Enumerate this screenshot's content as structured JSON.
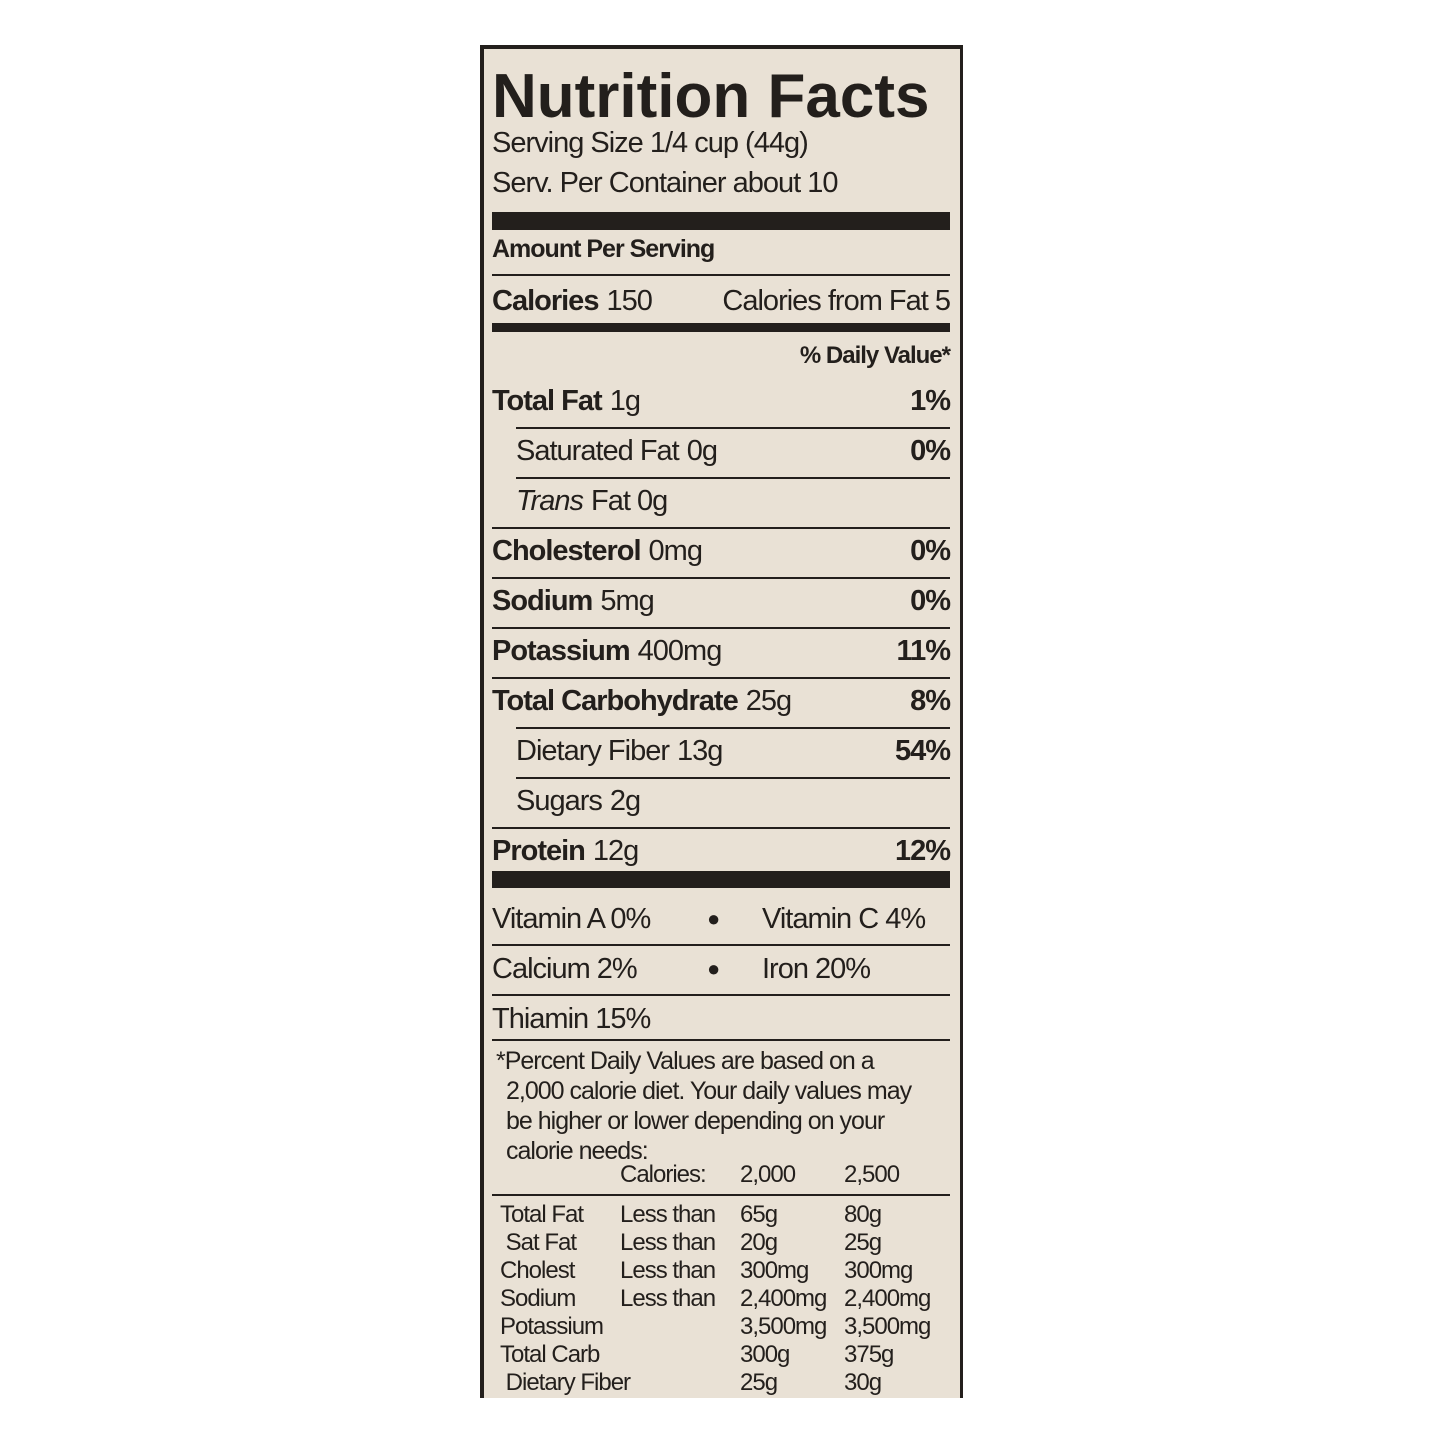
{
  "title": "Nutrition Facts",
  "serving_size": "Serving Size 1/4 cup (44g)",
  "servings_per_container": "Serv. Per Container about 10",
  "amount_per_serving": "Amount Per Serving",
  "calories": {
    "label": "Calories",
    "value": "150",
    "from_fat": "Calories from Fat 5"
  },
  "daily_value_header": "% Daily Value*",
  "nutrients": [
    {
      "name": "Total Fat",
      "amount": "1g",
      "dv": "1%"
    },
    {
      "name": "Saturated Fat",
      "amount": "0g",
      "dv": "0%"
    },
    {
      "name": "Trans",
      "name_rest": "Fat 0g",
      "dv": ""
    },
    {
      "name": "Cholesterol",
      "amount": "0mg",
      "dv": "0%"
    },
    {
      "name": "Sodium",
      "amount": "5mg",
      "dv": "0%"
    },
    {
      "name": "Potassium",
      "amount": "400mg",
      "dv": "11%"
    },
    {
      "name": "Total Carbohydrate",
      "amount": "25g",
      "dv": "8%"
    },
    {
      "name": "Dietary Fiber",
      "amount": "13g",
      "dv": "54%"
    },
    {
      "name": "Sugars",
      "amount": "2g",
      "dv": ""
    },
    {
      "name": "Protein",
      "amount": "12g",
      "dv": "12%"
    }
  ],
  "vitamins": [
    {
      "left": "Vitamin A 0%",
      "right": "Vitamin C 4%"
    },
    {
      "left": "Calcium 2%",
      "right": "Iron 20%"
    },
    {
      "left": "Thiamin 15%",
      "right": ""
    }
  ],
  "footnote": [
    "*Percent Daily Values are based on a",
    "2,000 calorie diet. Your daily values may",
    "be higher or lower depending on your",
    "calorie needs:"
  ],
  "dv_table": {
    "header": [
      "",
      "Calories:",
      "2,000",
      "2,500"
    ],
    "rows": [
      [
        "Total Fat",
        "Less than",
        "65g",
        "80g"
      ],
      [
        " Sat Fat",
        "Less than",
        "20g",
        "25g"
      ],
      [
        "Cholest",
        "Less than",
        "300mg",
        "300mg"
      ],
      [
        "Sodium",
        "Less than",
        "2,400mg",
        "2,400mg"
      ],
      [
        "Potassium",
        "",
        "3,500mg",
        "3,500mg"
      ],
      [
        "Total Carb",
        "",
        "300g",
        "375g"
      ],
      [
        " Dietary Fiber",
        "",
        "25g",
        "30g"
      ]
    ]
  }
}
